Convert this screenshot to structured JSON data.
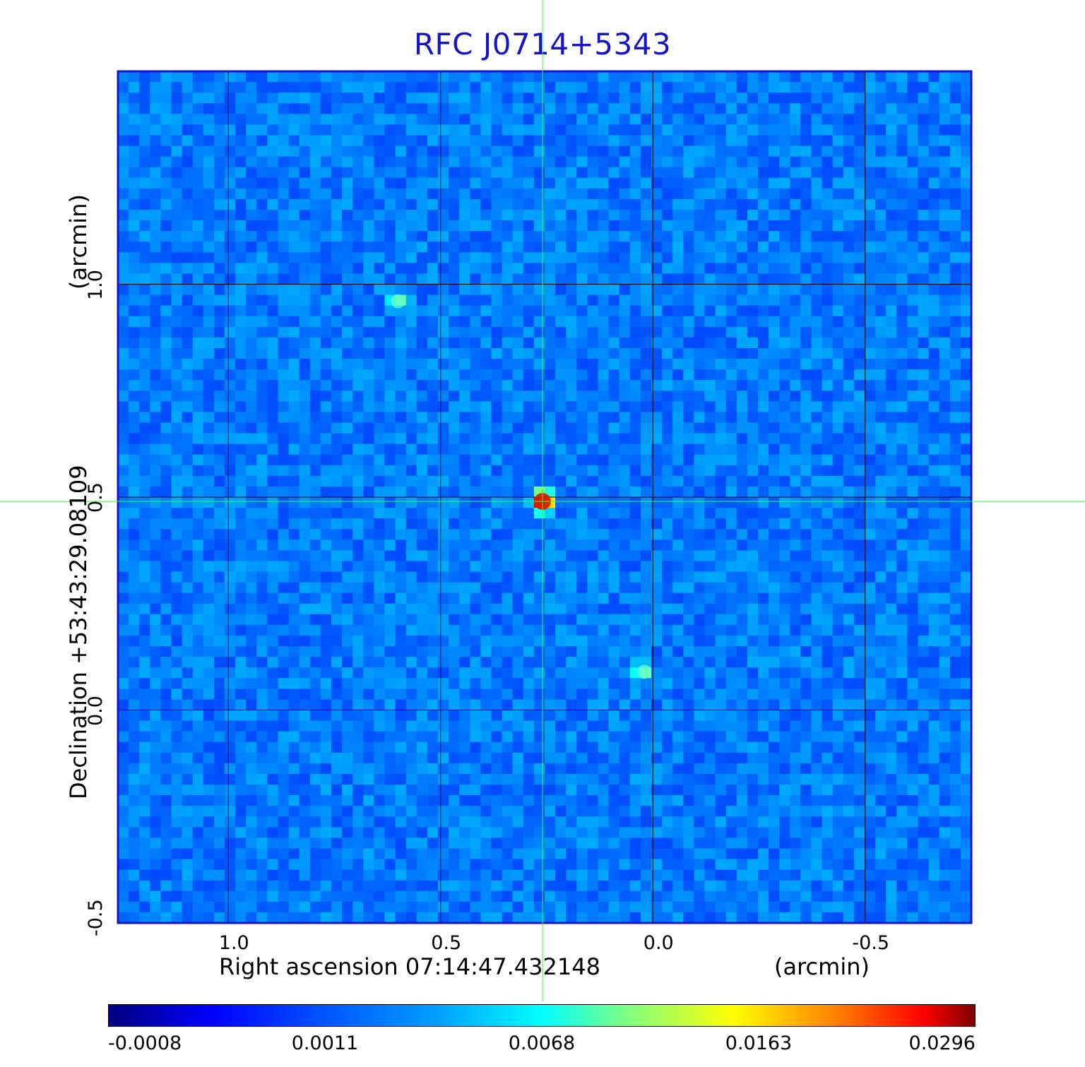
{
  "chart_data": {
    "type": "heatmap",
    "title": "RFC J0714+5343",
    "xlabel": "Right ascension  07:14:47.432148",
    "xunit": "(arcmin)",
    "ylabel": "Declination  +53:43:29.08109",
    "yunit": "(arcmin)",
    "xlim": [
      1.26,
      -0.75
    ],
    "ylim": [
      -0.5,
      1.5
    ],
    "xticks": [
      "1.0",
      "0.5",
      "0.0",
      "-0.5"
    ],
    "xtick_values": [
      1.0,
      0.5,
      0.0,
      -0.5
    ],
    "yticks": [
      "-0.5",
      "0.0",
      "0.5",
      "1.0"
    ],
    "ytick_values": [
      -0.5,
      0.0,
      0.5,
      1.0
    ],
    "grid": true,
    "crosshair": {
      "x": 0.26,
      "y": 0.49
    },
    "sources": [
      {
        "x": 0.26,
        "y": 0.49,
        "peak": 0.0296,
        "sigma": 0.012
      },
      {
        "x": 0.6,
        "y": 0.96,
        "peak": 0.004,
        "sigma": 0.012
      },
      {
        "x": 0.02,
        "y": 0.09,
        "peak": 0.0045,
        "sigma": 0.012
      }
    ],
    "colorbar": {
      "ticks": [
        "-0.0008",
        "0.0011",
        "0.0068",
        "0.0163",
        "0.0296"
      ],
      "tick_values": [
        -0.0008,
        0.0011,
        0.0068,
        0.0163,
        0.0296
      ]
    }
  }
}
